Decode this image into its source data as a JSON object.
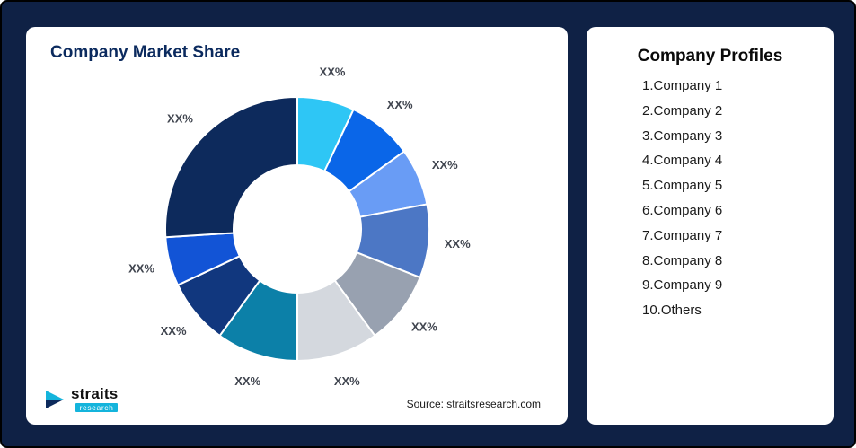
{
  "page": {
    "background": "#0F2145",
    "card_background": "#FFFFFF"
  },
  "chart_card": {
    "title": "Company Market Share",
    "source": "Source: straitsresearch.com"
  },
  "logo": {
    "brand": "straits",
    "sub_brand": "research",
    "mark_teal": "#14B4DC",
    "mark_navy": "#0D2A5C"
  },
  "profiles_card": {
    "title": "Company Profiles",
    "items": [
      "1.Company 1",
      "2.Company 2",
      "3.Company 3",
      "4.Company 4",
      "5.Company 5",
      "6.Company 6",
      "7.Company 7",
      "8.Company 8",
      "9.Company 9",
      "10.Others"
    ]
  },
  "chart_data": {
    "type": "pie",
    "subtype": "donut",
    "title": "Company Market Share",
    "legend": "none",
    "direction": "clockwise",
    "start_position": "12 o'clock",
    "inner_radius_ratio": 0.483,
    "series_labels": [
      "Company 1",
      "Company 2",
      "Company 3",
      "Company 4",
      "Company 5",
      "Company 6",
      "Company 7",
      "Company 8",
      "Company 9",
      "Others"
    ],
    "value_labels": [
      "XX%",
      "XX%",
      "XX%",
      "XX%",
      "XX%",
      "XX%",
      "XX%",
      "XX%",
      "XX%",
      "XX%"
    ],
    "values": [
      7,
      8,
      7,
      9,
      9,
      10,
      10,
      8,
      6,
      26
    ],
    "colors": [
      "#2EC6F5",
      "#0A66E8",
      "#699CF5",
      "#4C77C5",
      "#98A1B0",
      "#D4D8DE",
      "#0C80A8",
      "#11377E",
      "#1254D6",
      "#0D2A5C"
    ],
    "label_color": "#40454F"
  }
}
